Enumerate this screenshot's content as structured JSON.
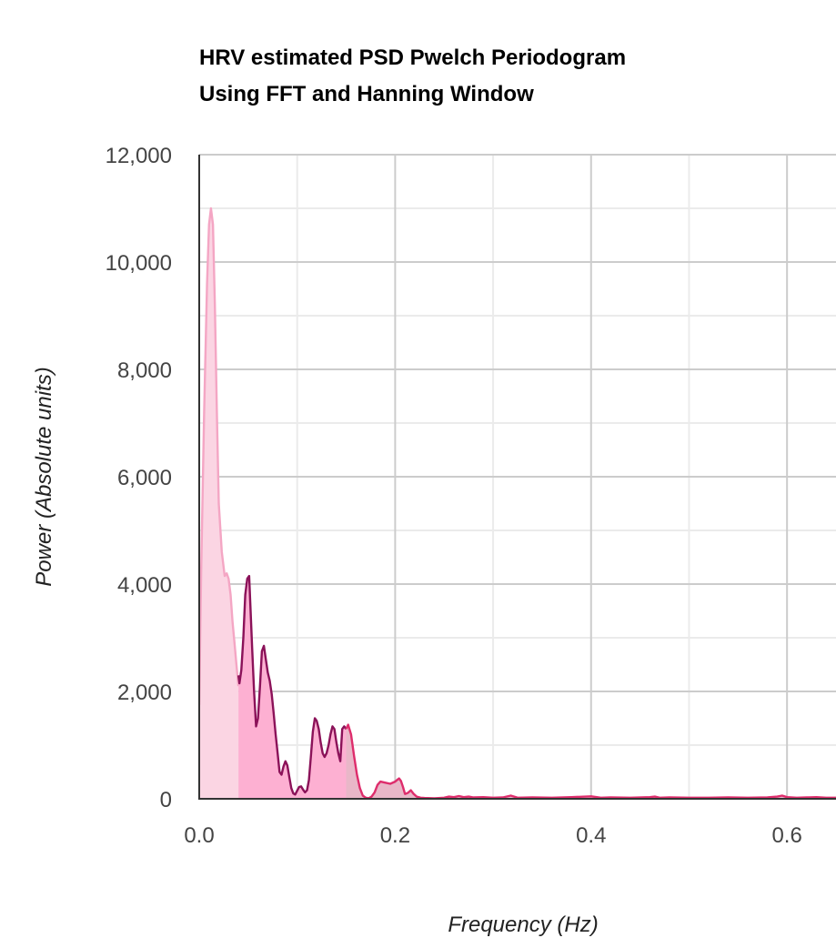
{
  "chart_data": {
    "type": "area",
    "title_lines": [
      "HRV estimated PSD Pwelch Periodogram",
      "Using FFT and Hanning Window"
    ],
    "xlabel": "Frequency (Hz)",
    "ylabel": "Power (Absolute units)",
    "xlim": [
      0,
      0.65
    ],
    "ylim": [
      0,
      12000
    ],
    "x_ticks": [
      0,
      0.2,
      0.4,
      0.6
    ],
    "x_tick_labels": [
      "0.0",
      "0.2",
      "0.4",
      "0.6"
    ],
    "y_ticks": [
      0,
      2000,
      4000,
      6000,
      8000,
      10000,
      12000
    ],
    "y_tick_labels": [
      "0",
      "2,000",
      "4,000",
      "6,000",
      "8,000",
      "10,000",
      "12,000"
    ],
    "grid": true,
    "series": [
      {
        "line_color": "#f4a6c4",
        "fill_color": "#fbd5e3",
        "x": [
          0,
          0.002,
          0.005,
          0.008,
          0.01,
          0.012,
          0.014,
          0.016,
          0.018,
          0.02,
          0.023,
          0.026,
          0.028,
          0.03,
          0.032,
          0.034,
          0.036,
          0.038,
          0.04
        ],
        "y": [
          1750,
          4300,
          7200,
          9600,
          10700,
          11000,
          10700,
          9200,
          7200,
          5500,
          4600,
          4150,
          4200,
          4100,
          3800,
          3300,
          2900,
          2500,
          2100
        ]
      },
      {
        "line_color": "#8b1259",
        "fill_color": "#fdb0d2",
        "x": [
          0.04,
          0.041,
          0.043,
          0.045,
          0.047,
          0.049,
          0.051,
          0.052,
          0.054,
          0.056,
          0.058,
          0.06,
          0.062,
          0.064,
          0.066,
          0.068,
          0.07,
          0.072,
          0.074,
          0.076,
          0.078,
          0.08,
          0.082,
          0.084,
          0.086,
          0.088,
          0.09,
          0.092,
          0.094,
          0.096,
          0.098,
          0.1,
          0.102,
          0.104,
          0.106,
          0.108,
          0.11,
          0.112,
          0.114,
          0.116,
          0.118,
          0.12,
          0.122,
          0.124,
          0.126,
          0.128,
          0.13,
          0.132,
          0.134,
          0.136,
          0.138,
          0.14,
          0.142,
          0.144,
          0.146,
          0.148,
          0.15
        ],
        "y": [
          2300,
          2150,
          2400,
          3000,
          3800,
          4100,
          4150,
          3700,
          2800,
          2000,
          1350,
          1500,
          2100,
          2750,
          2850,
          2600,
          2350,
          2200,
          1950,
          1600,
          1200,
          850,
          500,
          450,
          600,
          700,
          620,
          400,
          200,
          100,
          80,
          150,
          220,
          230,
          170,
          120,
          160,
          350,
          800,
          1250,
          1500,
          1450,
          1300,
          1050,
          850,
          780,
          850,
          1000,
          1200,
          1350,
          1300,
          1050,
          850,
          700,
          1300,
          1350,
          1300
        ]
      },
      {
        "line_color": "#de2d6c",
        "fill_color": "#e9b7c8",
        "x": [
          0.15,
          0.152,
          0.155,
          0.158,
          0.161,
          0.164,
          0.167,
          0.17,
          0.173,
          0.176,
          0.179,
          0.182,
          0.185,
          0.19,
          0.195,
          0.2,
          0.204,
          0.206,
          0.208,
          0.21,
          0.213,
          0.216,
          0.219,
          0.222,
          0.226,
          0.23,
          0.24,
          0.25,
          0.255,
          0.26,
          0.265,
          0.27,
          0.275,
          0.28,
          0.29,
          0.3,
          0.31,
          0.318,
          0.325,
          0.34,
          0.36,
          0.38,
          0.4,
          0.41,
          0.42,
          0.44,
          0.46,
          0.465,
          0.47,
          0.48,
          0.5,
          0.52,
          0.54,
          0.56,
          0.58,
          0.59,
          0.595,
          0.6,
          0.61,
          0.62,
          0.63,
          0.64,
          0.65
        ],
        "y": [
          1300,
          1380,
          1200,
          800,
          450,
          200,
          60,
          20,
          10,
          40,
          120,
          260,
          320,
          300,
          280,
          320,
          380,
          330,
          220,
          90,
          110,
          160,
          90,
          40,
          20,
          15,
          10,
          20,
          40,
          30,
          50,
          30,
          40,
          25,
          30,
          20,
          25,
          60,
          20,
          25,
          20,
          30,
          45,
          20,
          25,
          20,
          30,
          40,
          20,
          25,
          20,
          20,
          25,
          20,
          25,
          40,
          60,
          30,
          20,
          25,
          30,
          20,
          20
        ]
      }
    ]
  }
}
